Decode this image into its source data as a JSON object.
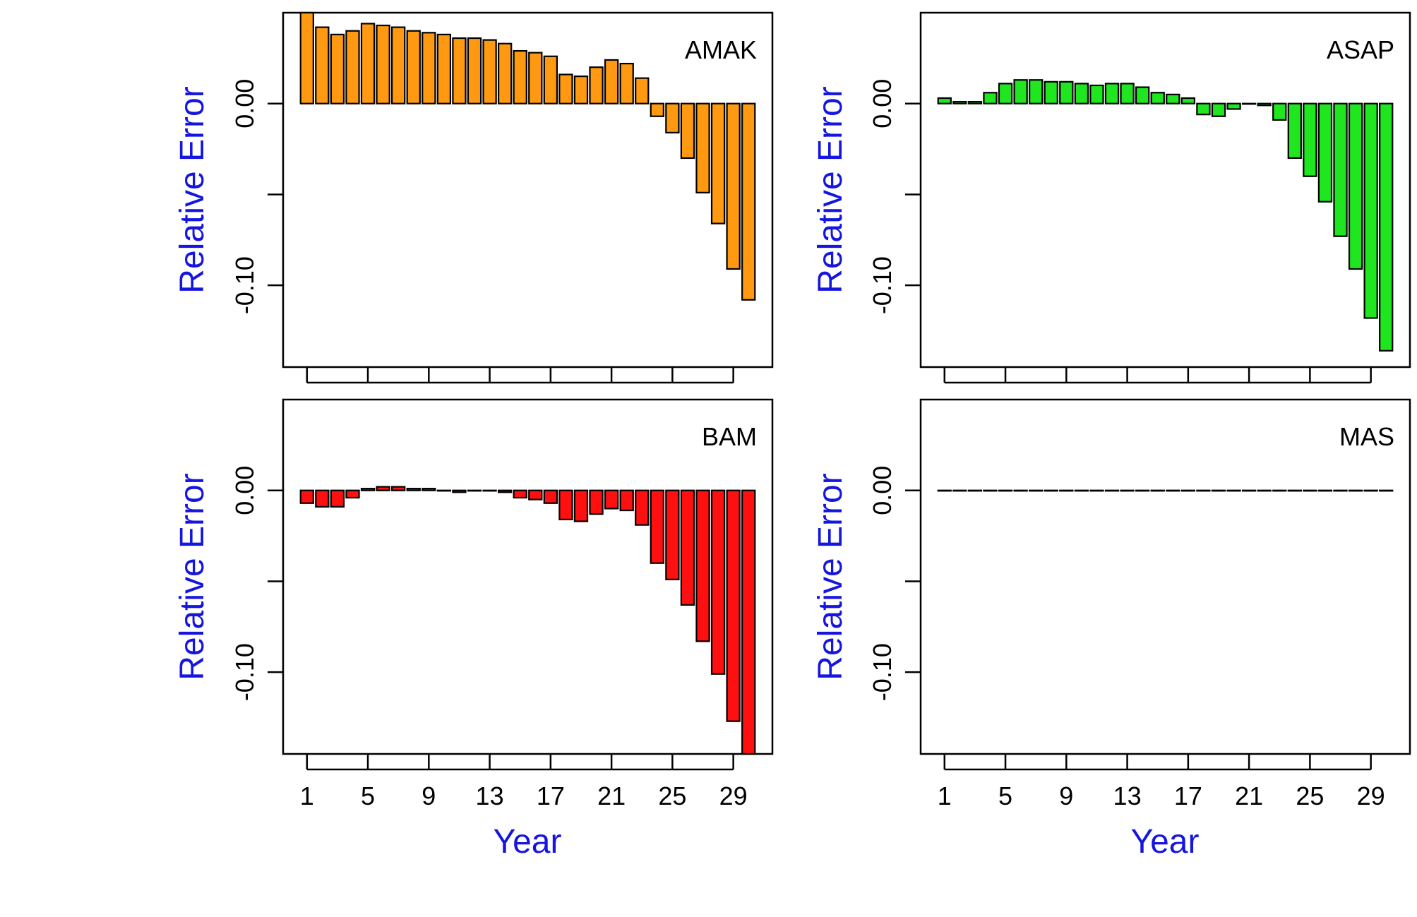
{
  "chart_data": [
    {
      "type": "bar",
      "label": "AMAK",
      "color": "#ff9912",
      "ylabel": "Relative Error",
      "xlabel": "",
      "ylim": [
        -0.145,
        0.05
      ],
      "yticks": [
        0.0,
        -0.05,
        -0.1
      ],
      "ytick_labels": [
        "0.00",
        "",
        "-0.10"
      ],
      "xticks": [
        1,
        5,
        9,
        13,
        17,
        21,
        25,
        29
      ],
      "xtick_labels": [],
      "categories": [
        1,
        2,
        3,
        4,
        5,
        6,
        7,
        8,
        9,
        10,
        11,
        12,
        13,
        14,
        15,
        16,
        17,
        18,
        19,
        20,
        21,
        22,
        23,
        24,
        25,
        26,
        27,
        28,
        29,
        30
      ],
      "values": [
        0.05,
        0.042,
        0.038,
        0.04,
        0.044,
        0.043,
        0.042,
        0.04,
        0.039,
        0.038,
        0.036,
        0.036,
        0.035,
        0.033,
        0.029,
        0.028,
        0.026,
        0.016,
        0.015,
        0.02,
        0.024,
        0.022,
        0.014,
        -0.007,
        -0.016,
        -0.03,
        -0.049,
        -0.066,
        -0.091,
        -0.108
      ]
    },
    {
      "type": "bar",
      "label": "ASAP",
      "color": "#1fe61f",
      "ylabel": "Relative Error",
      "xlabel": "",
      "ylim": [
        -0.145,
        0.05
      ],
      "yticks": [
        0.0,
        -0.05,
        -0.1
      ],
      "ytick_labels": [
        "0.00",
        "",
        "-0.10"
      ],
      "xticks": [
        1,
        5,
        9,
        13,
        17,
        21,
        25,
        29
      ],
      "xtick_labels": [],
      "categories": [
        1,
        2,
        3,
        4,
        5,
        6,
        7,
        8,
        9,
        10,
        11,
        12,
        13,
        14,
        15,
        16,
        17,
        18,
        19,
        20,
        21,
        22,
        23,
        24,
        25,
        26,
        27,
        28,
        29,
        30
      ],
      "values": [
        0.003,
        0.001,
        0.001,
        0.006,
        0.011,
        0.013,
        0.013,
        0.012,
        0.012,
        0.011,
        0.01,
        0.011,
        0.011,
        0.009,
        0.006,
        0.005,
        0.003,
        -0.006,
        -0.007,
        -0.003,
        0.0,
        -0.001,
        -0.009,
        -0.03,
        -0.04,
        -0.054,
        -0.073,
        -0.091,
        -0.118,
        -0.136
      ]
    },
    {
      "type": "bar",
      "label": "BAM",
      "color": "#ff1010",
      "ylabel": "Relative Error",
      "xlabel": "Year",
      "ylim": [
        -0.145,
        0.05
      ],
      "yticks": [
        0.0,
        -0.05,
        -0.1
      ],
      "ytick_labels": [
        "0.00",
        "",
        "-0.10"
      ],
      "xticks": [
        1,
        5,
        9,
        13,
        17,
        21,
        25,
        29
      ],
      "xtick_labels": [
        "1",
        "5",
        "9",
        "13",
        "17",
        "21",
        "25",
        "29"
      ],
      "categories": [
        1,
        2,
        3,
        4,
        5,
        6,
        7,
        8,
        9,
        10,
        11,
        12,
        13,
        14,
        15,
        16,
        17,
        18,
        19,
        20,
        21,
        22,
        23,
        24,
        25,
        26,
        27,
        28,
        29,
        30
      ],
      "values": [
        -0.007,
        -0.009,
        -0.009,
        -0.004,
        0.001,
        0.002,
        0.002,
        0.001,
        0.001,
        0.0,
        -0.001,
        0.0,
        0.0,
        -0.001,
        -0.004,
        -0.005,
        -0.007,
        -0.016,
        -0.017,
        -0.013,
        -0.01,
        -0.011,
        -0.019,
        -0.04,
        -0.049,
        -0.063,
        -0.083,
        -0.101,
        -0.127,
        -0.145
      ]
    },
    {
      "type": "bar",
      "label": "MAS",
      "color": "#ffffff",
      "ylabel": "Relative Error",
      "xlabel": "Year",
      "ylim": [
        -0.145,
        0.05
      ],
      "yticks": [
        0.0,
        -0.05,
        -0.1
      ],
      "ytick_labels": [
        "0.00",
        "",
        "-0.10"
      ],
      "xticks": [
        1,
        5,
        9,
        13,
        17,
        21,
        25,
        29
      ],
      "xtick_labels": [
        "1",
        "5",
        "9",
        "13",
        "17",
        "21",
        "25",
        "29"
      ],
      "categories": [
        1,
        2,
        3,
        4,
        5,
        6,
        7,
        8,
        9,
        10,
        11,
        12,
        13,
        14,
        15,
        16,
        17,
        18,
        19,
        20,
        21,
        22,
        23,
        24,
        25,
        26,
        27,
        28,
        29,
        30
      ],
      "values": [
        0,
        0,
        0,
        0,
        0,
        0,
        0,
        0,
        0,
        0,
        0,
        0,
        0,
        0,
        0,
        0,
        0,
        0,
        0,
        0,
        0,
        0,
        0,
        0,
        0,
        0,
        0,
        0,
        0,
        0
      ]
    }
  ]
}
